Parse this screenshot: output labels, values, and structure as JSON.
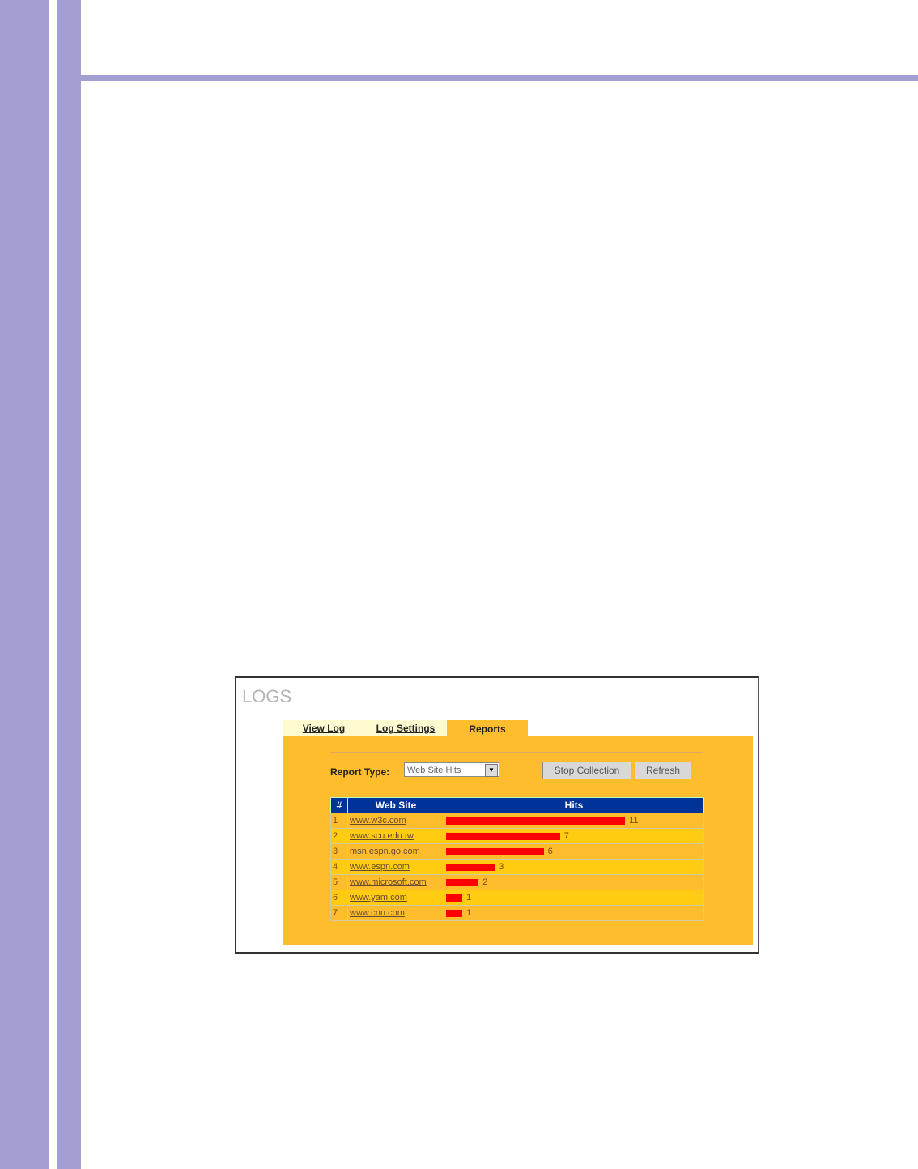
{
  "screenshot": {
    "title": "LOGS",
    "tabs": [
      {
        "label": "View Log",
        "active": false
      },
      {
        "label": "Log Settings",
        "active": false
      },
      {
        "label": "Reports",
        "active": true
      }
    ],
    "report_type_label": "Report Type:",
    "report_type_value": "Web Site Hits",
    "buttons": {
      "stop": "Stop Collection",
      "refresh": "Refresh"
    },
    "table": {
      "headers": [
        "#",
        "Web Site",
        "Hits"
      ],
      "rows": [
        {
          "n": "1",
          "site": "www.w3c.com",
          "hits": 11
        },
        {
          "n": "2",
          "site": "www.scu.edu.tw",
          "hits": 7
        },
        {
          "n": "3",
          "site": "msn.espn.go.com",
          "hits": 6
        },
        {
          "n": "4",
          "site": "www.espn.com",
          "hits": 3
        },
        {
          "n": "5",
          "site": "www.microsoft.com",
          "hits": 2
        },
        {
          "n": "6",
          "site": "www.yam.com",
          "hits": 1
        },
        {
          "n": "7",
          "site": "www.cnn.com",
          "hits": 1
        }
      ]
    },
    "colors": {
      "accent": "#a39fd2",
      "panel": "#fdbd2c",
      "header": "#003399",
      "bar": "#ff0000"
    }
  }
}
